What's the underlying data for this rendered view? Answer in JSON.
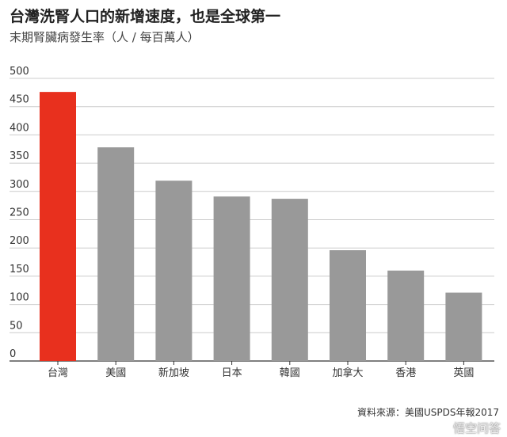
{
  "title": "台灣洗腎人口的新增速度，也是全球第一",
  "subtitle": "末期腎臟病發生率（人 / 每百萬人）",
  "source": "資料來源：美國USPDS年報2017",
  "watermark": "悟空问答",
  "colors": {
    "highlight": "#e8301e",
    "bar": "#999999",
    "grid": "#cccccc",
    "axis": "#333333"
  },
  "chart_data": {
    "type": "bar",
    "categories": [
      "台灣",
      "美國",
      "新加坡",
      "日本",
      "韓國",
      "加拿大",
      "香港",
      "英國"
    ],
    "values": [
      476,
      378,
      319,
      291,
      287,
      196,
      160,
      121
    ],
    "highlight_index": 0,
    "ylim": [
      0,
      500
    ],
    "yticks": [
      0,
      50,
      100,
      150,
      200,
      250,
      300,
      350,
      400,
      450,
      500
    ],
    "grid": true
  }
}
